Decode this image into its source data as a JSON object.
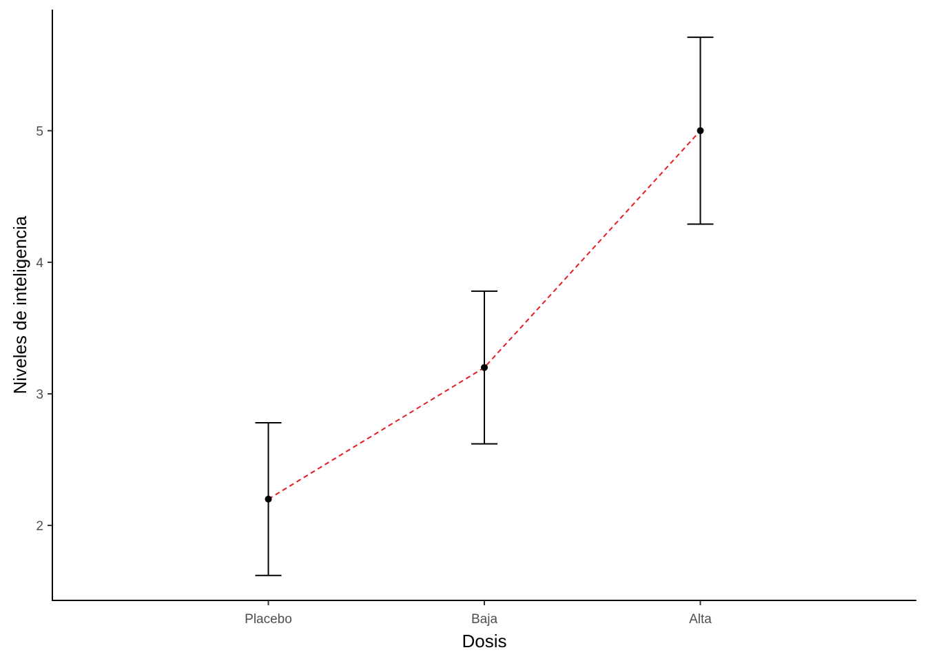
{
  "chart_data": {
    "type": "line",
    "categories": [
      "Placebo",
      "Baja",
      "Alta"
    ],
    "values": [
      2.2,
      3.2,
      5.0
    ],
    "error_bars": {
      "lower": [
        1.62,
        2.62,
        4.29
      ],
      "upper": [
        2.78,
        3.78,
        5.71
      ]
    },
    "xlabel": "Dosis",
    "ylabel": "Niveles de inteligencia",
    "yticks": [
      2,
      3,
      4,
      5
    ],
    "ylim": [
      1.43,
      5.92
    ],
    "grid": false,
    "line_style": "dashed",
    "line_color": "#e8191e",
    "point_color": "#000000",
    "error_bar_color": "#000000"
  }
}
